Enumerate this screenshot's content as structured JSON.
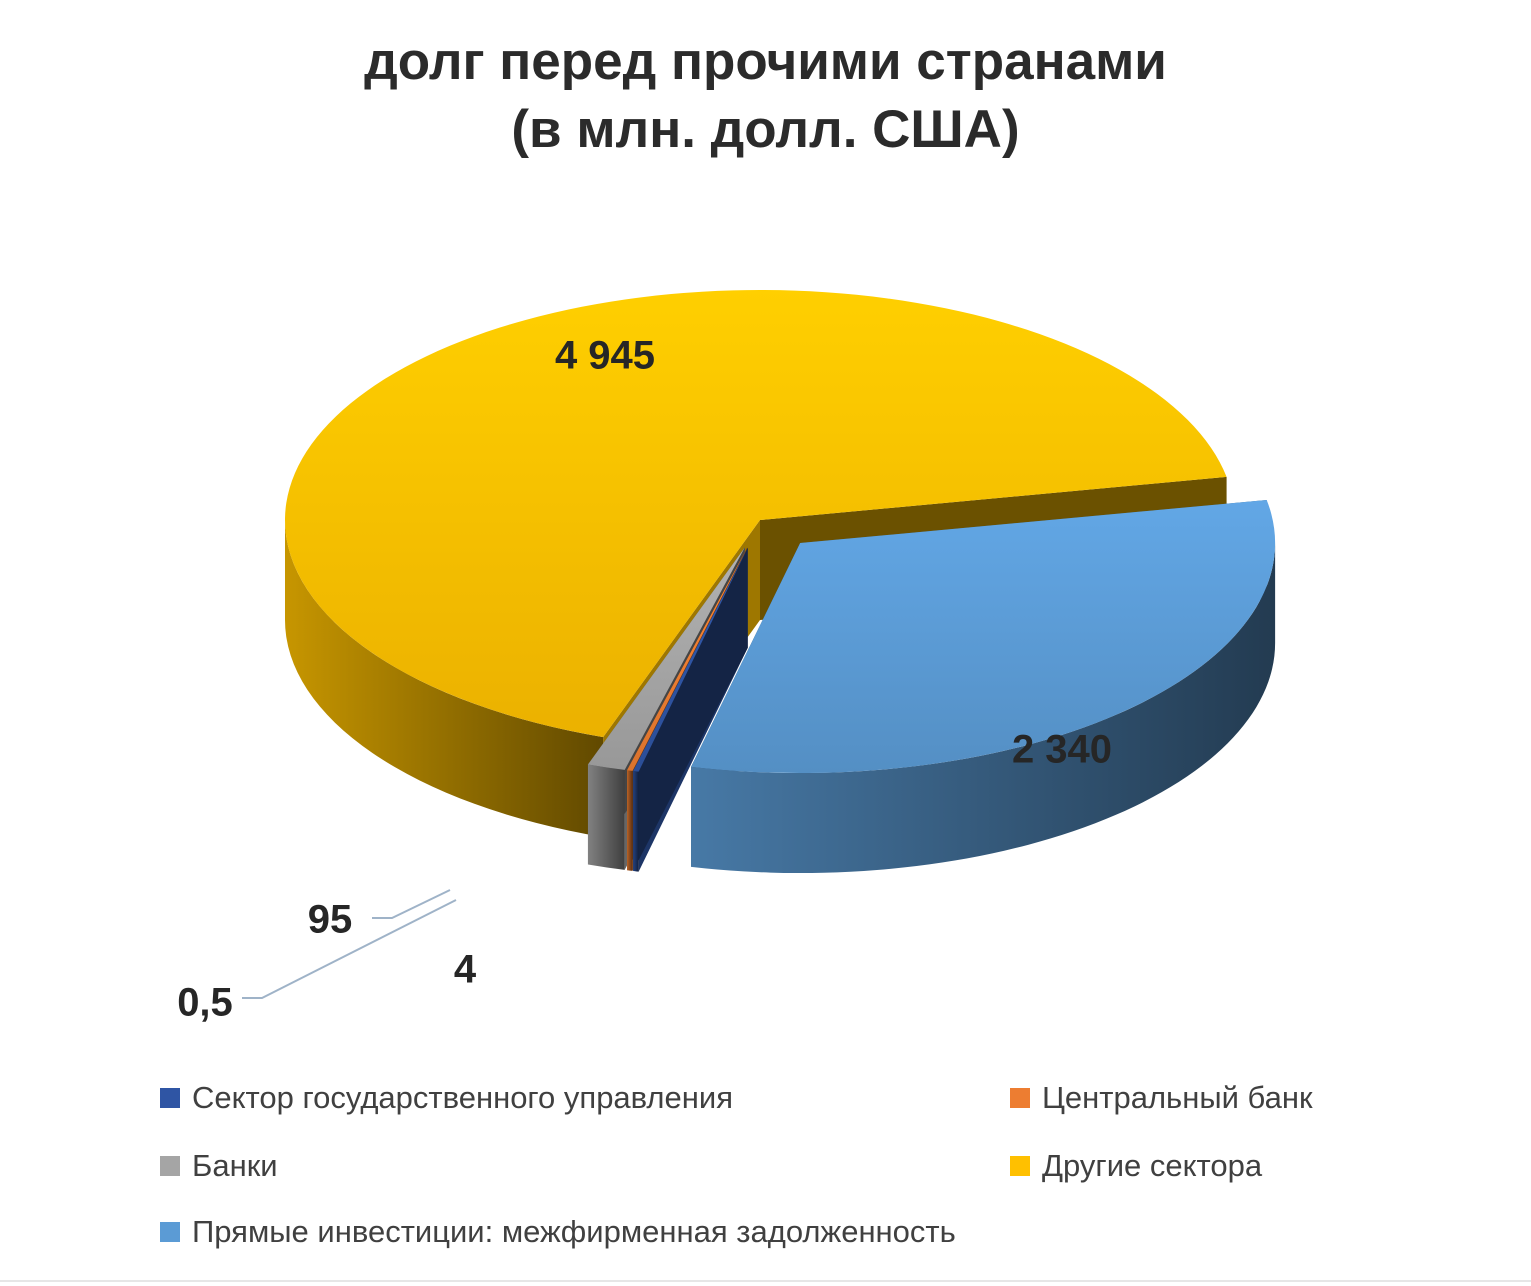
{
  "chart_data": {
    "type": "pie",
    "title_lines": [
      "долг перед прочими странами",
      "(в млн. долл. США)"
    ],
    "slices": [
      {
        "name": "Сектор государственного управления",
        "value": 4,
        "label": "4",
        "color": "#2f55a4"
      },
      {
        "name": "Центральный банк",
        "value": 0.5,
        "label": "0,5",
        "color": "#ed7d31"
      },
      {
        "name": "Банки",
        "value": 95,
        "label": "95",
        "color": "#a5a5a5"
      },
      {
        "name": "Другие сектора",
        "value": 4945,
        "label": "4 945",
        "color": "#ffc000"
      },
      {
        "name": "Прямые инвестиции: межфирменная задолженность",
        "value": 2340,
        "label": "2 340",
        "color": "#5b9bd5"
      }
    ],
    "style": "3d exploded pie",
    "legend_position": "bottom"
  }
}
